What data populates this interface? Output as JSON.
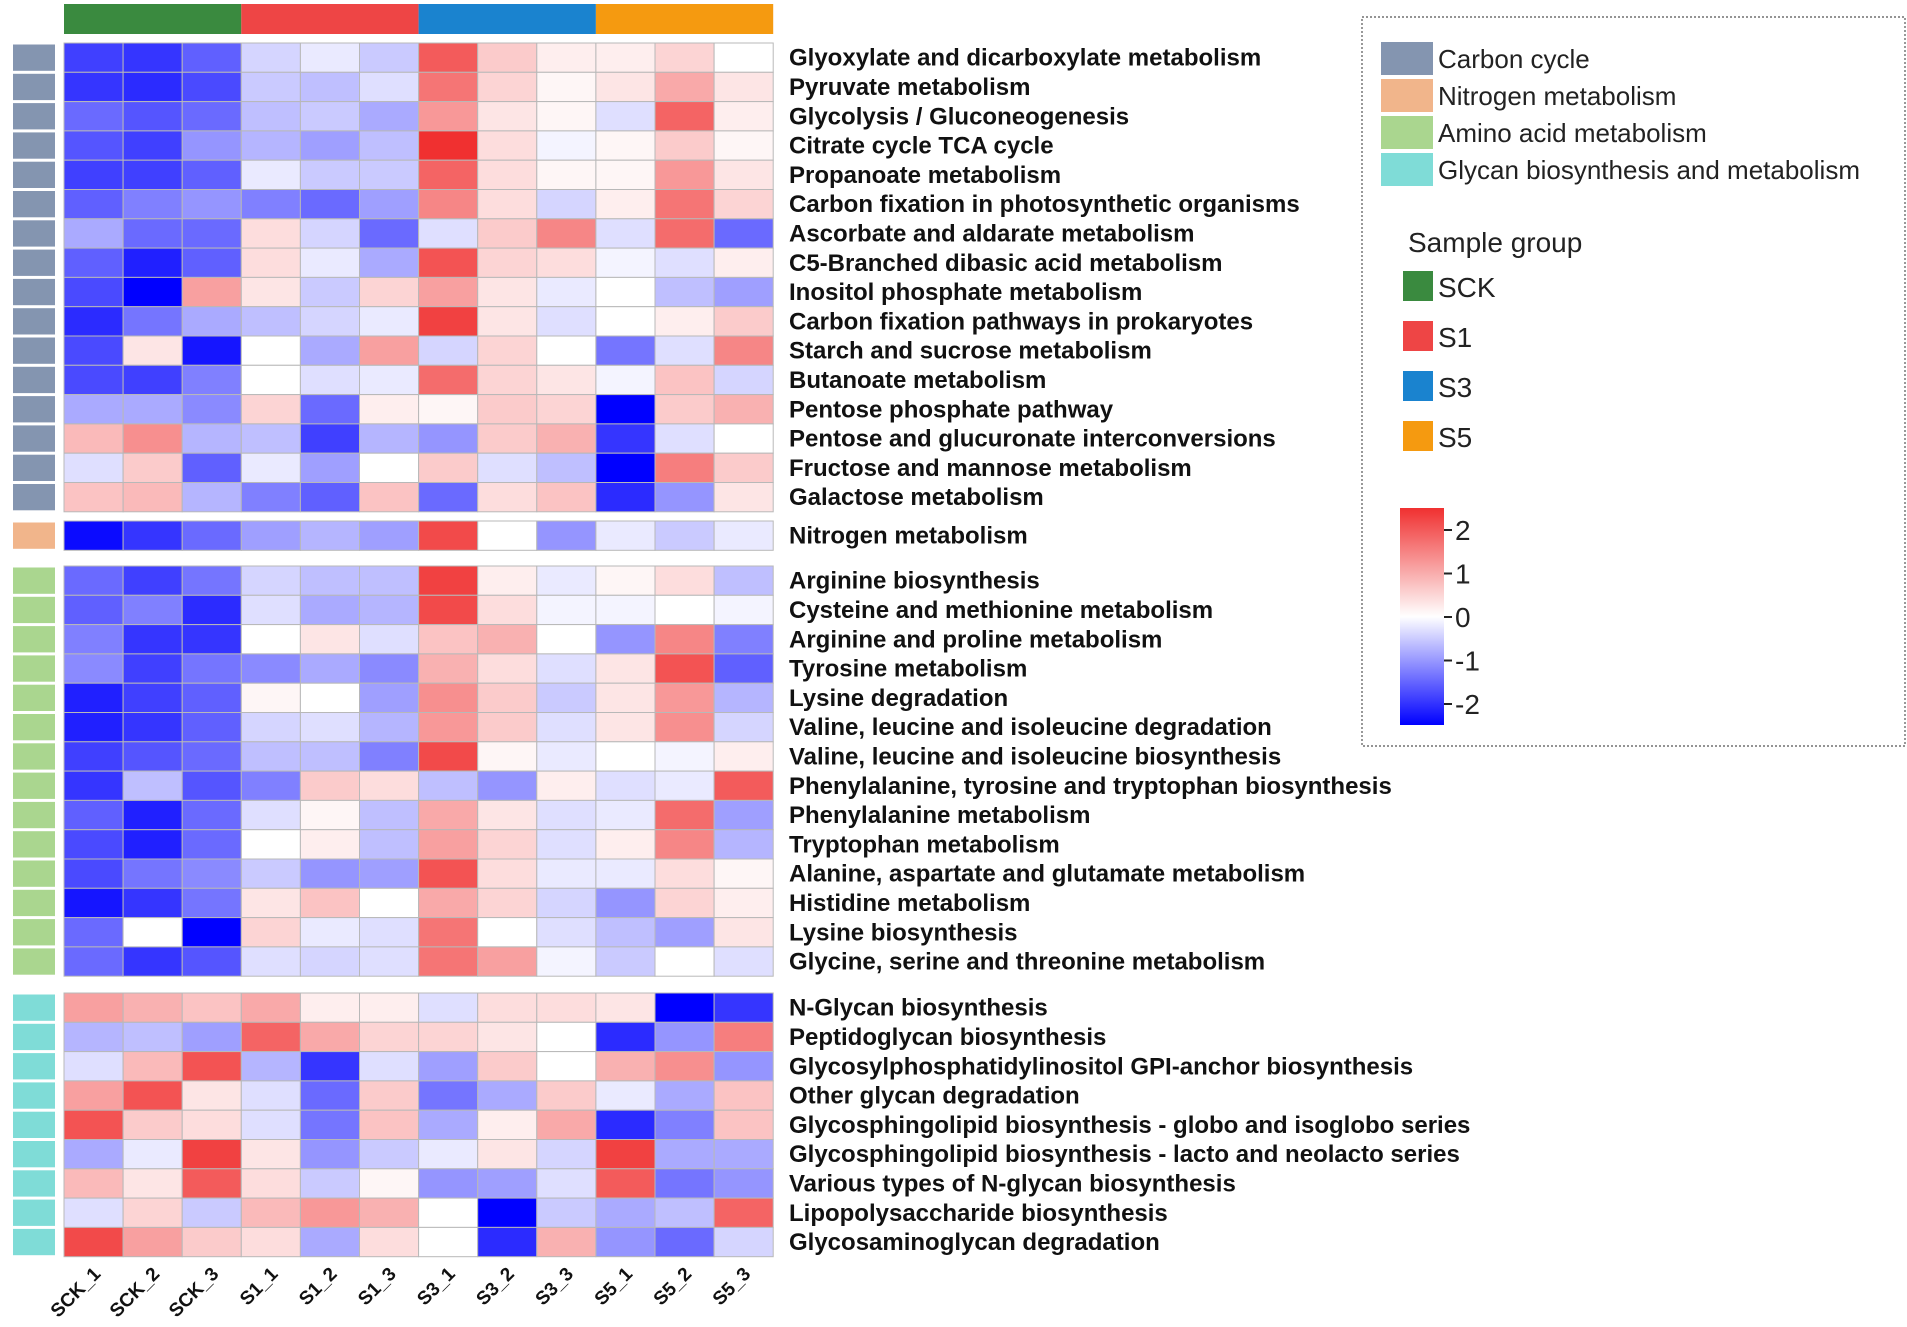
{
  "chart_data": {
    "type": "heatmap",
    "title": "",
    "samples": [
      "SCK_1",
      "SCK_2",
      "SCK_3",
      "S1_1",
      "S1_2",
      "S1_3",
      "S3_1",
      "S3_2",
      "S3_3",
      "S5_1",
      "S5_2",
      "S5_3"
    ],
    "sample_group_title": "Sample group",
    "sample_groups": [
      {
        "name": "SCK",
        "color": "#3a8a3f",
        "samples": [
          "SCK_1",
          "SCK_2",
          "SCK_3"
        ]
      },
      {
        "name": "S1",
        "color": "#ee4545",
        "samples": [
          "S1_1",
          "S1_2",
          "S1_3"
        ]
      },
      {
        "name": "S3",
        "color": "#1a83cf",
        "samples": [
          "S3_1",
          "S3_2",
          "S3_3"
        ]
      },
      {
        "name": "S5",
        "color": "#f59a10",
        "samples": [
          "S5_1",
          "S5_2",
          "S5_3"
        ]
      }
    ],
    "categories": [
      {
        "name": "Carbon cycle",
        "color": "#8495b0"
      },
      {
        "name": "Nitrogen metabolism",
        "color": "#f1b58b"
      },
      {
        "name": "Amino acid metabolism",
        "color": "#aad68f"
      },
      {
        "name": "Glycan biosynthesis and metabolism",
        "color": "#7fdcd7"
      }
    ],
    "color_scale": {
      "min": -2.4,
      "max": 2.4,
      "low_color": "#0000ff",
      "mid_color": "#ffffff",
      "high_color": "#f03030",
      "ticks": [
        "2",
        "1",
        "0",
        "-1",
        "-2"
      ]
    },
    "blocks": [
      {
        "category": "Carbon cycle",
        "rows": [
          {
            "label": "Glyoxylate and dicarboxylate metabolism",
            "values": [
              -1.8,
              -1.9,
              -1.5,
              -0.4,
              -0.2,
              -0.5,
              1.9,
              0.6,
              0.2,
              0.2,
              0.5,
              0.0
            ]
          },
          {
            "label": "Pyruvate metabolism",
            "values": [
              -1.9,
              -2.0,
              -1.7,
              -0.5,
              -0.6,
              -0.3,
              1.6,
              0.5,
              0.1,
              0.3,
              1.0,
              0.3
            ]
          },
          {
            "label": "Glycolysis / Gluconeogenesis",
            "values": [
              -1.4,
              -1.6,
              -1.4,
              -0.6,
              -0.5,
              -0.8,
              1.2,
              0.3,
              0.1,
              -0.3,
              1.8,
              0.2
            ]
          },
          {
            "label": "Citrate cycle TCA cycle",
            "values": [
              -1.6,
              -1.8,
              -1.0,
              -0.7,
              -0.9,
              -0.6,
              2.4,
              0.4,
              -0.1,
              0.1,
              0.6,
              0.1
            ]
          },
          {
            "label": "Propanoate metabolism",
            "values": [
              -1.8,
              -1.8,
              -1.5,
              -0.2,
              -0.5,
              -0.5,
              1.8,
              0.4,
              0.1,
              0.1,
              1.2,
              0.3
            ]
          },
          {
            "label": "Carbon fixation in photosynthetic organisms",
            "values": [
              -1.5,
              -1.2,
              -1.0,
              -1.2,
              -1.4,
              -0.9,
              1.4,
              0.4,
              -0.4,
              0.2,
              1.6,
              0.5
            ]
          },
          {
            "label": "Ascorbate and aldarate metabolism",
            "values": [
              -0.8,
              -1.4,
              -1.4,
              0.4,
              -0.4,
              -1.4,
              -0.3,
              0.6,
              1.4,
              -0.3,
              1.7,
              -1.4
            ]
          },
          {
            "label": "C5-Branched dibasic acid metabolism",
            "values": [
              -1.5,
              -2.1,
              -1.5,
              0.4,
              -0.2,
              -0.8,
              2.0,
              0.5,
              0.4,
              -0.1,
              -0.3,
              0.2
            ]
          },
          {
            "label": "Inositol phosphate metabolism",
            "values": [
              -1.7,
              -2.4,
              1.1,
              0.3,
              -0.5,
              0.5,
              1.1,
              0.3,
              -0.2,
              0.0,
              -0.6,
              -0.9
            ]
          },
          {
            "label": "Carbon fixation pathways in prokaryotes",
            "values": [
              -2.0,
              -1.3,
              -0.8,
              -0.6,
              -0.4,
              -0.2,
              2.2,
              0.3,
              -0.3,
              0.0,
              0.2,
              0.6
            ]
          },
          {
            "label": "Starch and sucrose metabolism",
            "values": [
              -1.7,
              0.3,
              -2.2,
              0.0,
              -0.8,
              1.1,
              -0.4,
              0.5,
              0.0,
              -1.3,
              -0.3,
              1.4
            ]
          },
          {
            "label": "Butanoate metabolism",
            "values": [
              -1.7,
              -1.8,
              -1.2,
              0.0,
              -0.3,
              -0.2,
              1.7,
              0.5,
              0.3,
              -0.1,
              0.7,
              -0.4
            ]
          },
          {
            "label": "Pentose phosphate pathway",
            "values": [
              -0.8,
              -0.8,
              -1.1,
              0.5,
              -1.4,
              0.2,
              0.1,
              0.6,
              0.5,
              -2.4,
              0.6,
              0.9
            ]
          },
          {
            "label": "Pentose and glucuronate interconversions",
            "values": [
              0.8,
              1.3,
              -0.7,
              -0.6,
              -1.8,
              -0.7,
              -1.0,
              0.6,
              0.9,
              -1.9,
              -0.3,
              0.0
            ]
          },
          {
            "label": "Fructose and mannose metabolism",
            "values": [
              -0.3,
              0.6,
              -1.5,
              -0.2,
              -0.9,
              0.0,
              0.6,
              -0.3,
              -0.6,
              -2.4,
              1.5,
              0.6
            ]
          },
          {
            "label": "Galactose metabolism",
            "values": [
              0.7,
              0.8,
              -0.7,
              -1.2,
              -1.5,
              0.7,
              -1.4,
              0.4,
              0.7,
              -2.0,
              -1.0,
              0.3
            ]
          }
        ]
      },
      {
        "category": "Nitrogen metabolism",
        "rows": [
          {
            "label": "Nitrogen metabolism",
            "values": [
              -2.3,
              -1.9,
              -1.4,
              -0.9,
              -0.7,
              -0.9,
              2.1,
              0.0,
              -1.0,
              -0.2,
              -0.5,
              -0.2
            ]
          }
        ]
      },
      {
        "category": "Amino acid metabolism",
        "rows": [
          {
            "label": "Arginine biosynthesis",
            "values": [
              -1.4,
              -1.8,
              -1.3,
              -0.4,
              -0.6,
              -0.6,
              2.2,
              0.2,
              -0.2,
              0.1,
              0.4,
              -0.6
            ]
          },
          {
            "label": "Cysteine and methionine metabolism",
            "values": [
              -1.5,
              -1.2,
              -2.0,
              -0.3,
              -0.8,
              -0.7,
              2.1,
              0.4,
              -0.1,
              -0.1,
              0.0,
              -0.1
            ]
          },
          {
            "label": "Arginine and proline metabolism",
            "values": [
              -1.2,
              -1.9,
              -1.9,
              0.0,
              0.3,
              -0.3,
              0.7,
              0.9,
              0.0,
              -1.0,
              1.4,
              -1.2
            ]
          },
          {
            "label": "Tyrosine metabolism",
            "values": [
              -1.1,
              -1.8,
              -1.3,
              -1.1,
              -0.8,
              -1.1,
              0.9,
              0.4,
              -0.3,
              0.3,
              2.0,
              -1.5
            ]
          },
          {
            "label": "Lysine degradation",
            "values": [
              -2.1,
              -1.8,
              -1.5,
              0.1,
              0.0,
              -0.9,
              1.3,
              0.6,
              -0.5,
              0.3,
              1.2,
              -0.7
            ]
          },
          {
            "label": "Valine, leucine and isoleucine degradation",
            "values": [
              -2.1,
              -1.9,
              -1.5,
              -0.4,
              -0.3,
              -0.7,
              1.2,
              0.6,
              -0.3,
              0.3,
              1.3,
              -0.4
            ]
          },
          {
            "label": "Valine, leucine and isoleucine biosynthesis",
            "values": [
              -1.8,
              -1.6,
              -1.4,
              -0.6,
              -0.6,
              -1.2,
              2.1,
              0.1,
              -0.2,
              0.0,
              -0.1,
              0.2
            ]
          },
          {
            "label": "Phenylalanine, tyrosine and tryptophan biosynthesis",
            "values": [
              -1.9,
              -0.6,
              -1.6,
              -1.2,
              0.6,
              0.4,
              -0.6,
              -1.0,
              0.2,
              -0.3,
              -0.2,
              1.9
            ]
          },
          {
            "label": "Phenylalanine metabolism",
            "values": [
              -1.5,
              -2.1,
              -1.4,
              -0.3,
              0.1,
              -0.6,
              1.0,
              0.3,
              -0.3,
              -0.2,
              1.7,
              -0.9
            ]
          },
          {
            "label": "Tryptophan metabolism",
            "values": [
              -1.7,
              -2.1,
              -1.4,
              0.0,
              0.2,
              -0.6,
              1.1,
              0.5,
              -0.3,
              0.2,
              1.4,
              -0.7
            ]
          },
          {
            "label": "Alanine, aspartate and glutamate metabolism",
            "values": [
              -1.7,
              -1.3,
              -1.1,
              -0.5,
              -1.0,
              -0.9,
              2.0,
              0.4,
              -0.2,
              -0.2,
              0.4,
              0.1
            ]
          },
          {
            "label": "Histidine metabolism",
            "values": [
              -2.2,
              -1.9,
              -1.3,
              0.3,
              0.7,
              0.0,
              1.0,
              0.5,
              -0.4,
              -1.0,
              0.5,
              0.2
            ]
          },
          {
            "label": "Lysine biosynthesis",
            "values": [
              -1.4,
              0.0,
              -2.4,
              0.5,
              -0.2,
              -0.3,
              1.6,
              0.0,
              -0.3,
              -0.6,
              -0.9,
              0.3
            ]
          },
          {
            "label": "Glycine, serine and threonine metabolism",
            "values": [
              -1.4,
              -1.9,
              -1.6,
              -0.3,
              -0.4,
              -0.3,
              1.6,
              1.1,
              -0.1,
              -0.5,
              0.0,
              -0.3
            ]
          }
        ]
      },
      {
        "category": "Glycan biosynthesis and metabolism",
        "rows": [
          {
            "label": "N-Glycan biosynthesis",
            "values": [
              1.1,
              0.9,
              0.7,
              1.0,
              0.2,
              0.2,
              -0.3,
              0.4,
              0.4,
              0.3,
              -2.4,
              -1.9
            ]
          },
          {
            "label": "Peptidoglycan biosynthesis",
            "values": [
              -0.7,
              -0.6,
              -0.9,
              1.8,
              1.0,
              0.5,
              0.5,
              0.3,
              0.0,
              -2.0,
              -1.0,
              1.5
            ]
          },
          {
            "label": "Glycosylphosphatidylinositol GPI-anchor biosynthesis",
            "values": [
              -0.3,
              0.8,
              2.0,
              -0.7,
              -1.9,
              -0.3,
              -0.9,
              0.6,
              0.0,
              0.9,
              1.3,
              -1.0
            ]
          },
          {
            "label": "Other glycan degradation",
            "values": [
              1.1,
              2.0,
              0.3,
              -0.3,
              -1.4,
              0.6,
              -1.3,
              -0.8,
              0.6,
              -0.2,
              -0.8,
              0.7
            ]
          },
          {
            "label": "Glycosphingolipid biosynthesis - globo and isoglobo series",
            "values": [
              2.0,
              0.6,
              0.4,
              -0.3,
              -1.3,
              0.7,
              -0.8,
              0.2,
              1.0,
              -2.0,
              -1.2,
              0.7
            ]
          },
          {
            "label": "Glycosphingolipid biosynthesis - lacto and neolacto series",
            "values": [
              -0.8,
              -0.2,
              2.2,
              0.3,
              -1.0,
              -0.5,
              -0.2,
              0.3,
              -0.4,
              2.2,
              -0.8,
              -0.8
            ]
          },
          {
            "label": "Various types of N-glycan biosynthesis",
            "values": [
              0.8,
              0.3,
              1.9,
              0.4,
              -0.5,
              0.1,
              -1.0,
              -0.9,
              -0.3,
              1.9,
              -1.3,
              -1.0
            ]
          },
          {
            "label": "Lipopolysaccharide biosynthesis",
            "values": [
              -0.3,
              0.5,
              -0.5,
              0.8,
              1.2,
              0.9,
              0.0,
              -2.4,
              -0.5,
              -0.8,
              -0.6,
              1.8
            ]
          },
          {
            "label": "Glycosaminoglycan degradation",
            "values": [
              2.1,
              1.1,
              0.6,
              0.4,
              -0.8,
              0.4,
              0.0,
              -2.0,
              0.9,
              -1.0,
              -1.4,
              -0.4
            ]
          }
        ]
      }
    ]
  }
}
